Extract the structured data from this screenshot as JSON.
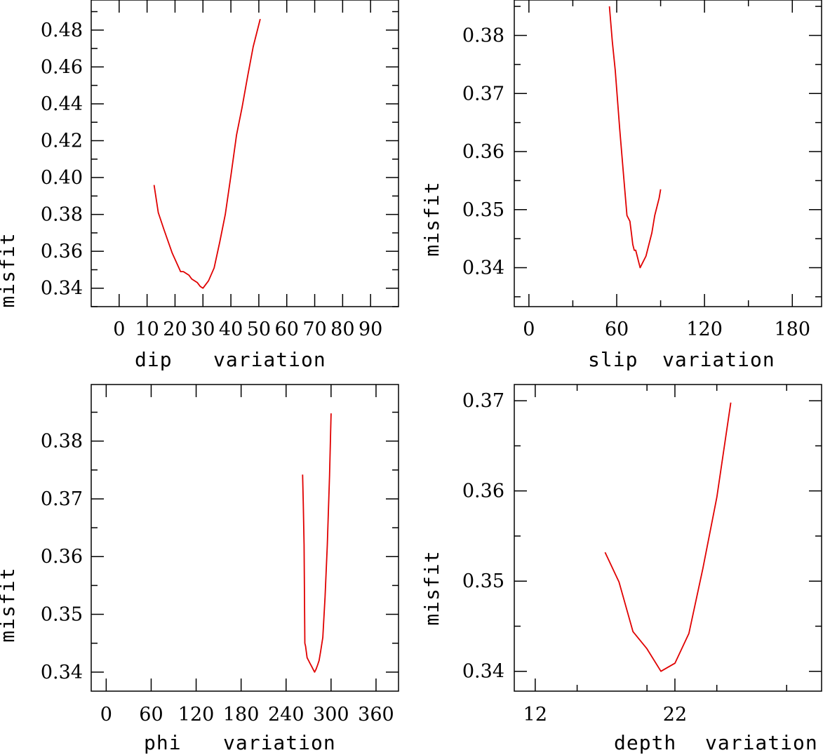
{
  "colors": {
    "curve": "#e00000",
    "axis": "#000000",
    "background": "#ffffff"
  },
  "chart_data": [
    {
      "type": "line",
      "ylabel": "misfit",
      "xlabel_left": "dip",
      "xlabel_right": "variation",
      "xlim": [
        -10,
        100
      ],
      "ylim": [
        0.33,
        0.4963
      ],
      "xticks": [
        0,
        10,
        20,
        30,
        40,
        50,
        60,
        70,
        80,
        90
      ],
      "yticks": [
        0.34,
        0.36,
        0.38,
        0.4,
        0.42,
        0.44,
        0.46,
        0.48
      ],
      "ytick_labels": [
        "0.34",
        "0.36",
        "0.38",
        "0.40",
        "0.42",
        "0.44",
        "0.46",
        "0.48"
      ],
      "yminor_step": 0.01,
      "x": [
        12.5,
        14,
        16,
        19,
        22,
        23,
        25,
        26,
        28,
        29,
        30,
        32,
        34,
        36,
        38,
        40,
        42,
        44,
        46,
        48,
        50.5
      ],
      "y": [
        0.396,
        0.381,
        0.372,
        0.359,
        0.349,
        0.349,
        0.347,
        0.345,
        0.343,
        0.341,
        0.34,
        0.344,
        0.351,
        0.365,
        0.38,
        0.401,
        0.423,
        0.438,
        0.455,
        0.471,
        0.486
      ]
    },
    {
      "type": "line",
      "ylabel": "misfit",
      "xlabel_left": "slip",
      "xlabel_right": "variation",
      "xlim": [
        -10,
        200
      ],
      "ylim": [
        0.3333,
        0.3861
      ],
      "xticks": [
        0,
        60,
        120,
        180
      ],
      "xminor_step": 30,
      "yticks": [
        0.34,
        0.35,
        0.36,
        0.37,
        0.38
      ],
      "ytick_labels": [
        "0.34",
        "0.35",
        "0.36",
        "0.37",
        "0.38"
      ],
      "yminor_step": 0.005,
      "x": [
        55,
        57,
        59,
        62,
        65,
        67,
        69,
        70,
        71,
        72,
        73,
        74,
        75,
        76,
        78,
        80,
        82,
        84,
        86,
        88,
        89,
        90
      ],
      "y": [
        0.385,
        0.379,
        0.374,
        0.364,
        0.355,
        0.349,
        0.348,
        0.346,
        0.344,
        0.343,
        0.343,
        0.342,
        0.341,
        0.34,
        0.341,
        0.342,
        0.344,
        0.346,
        0.349,
        0.351,
        0.352,
        0.3535
      ]
    },
    {
      "type": "line",
      "ylabel": "misfit",
      "xlabel_left": "phi",
      "xlabel_right": "variation",
      "xlim": [
        -20,
        390
      ],
      "ylim": [
        0.3367,
        0.3898
      ],
      "xticks": [
        0,
        60,
        120,
        180,
        240,
        300,
        360
      ],
      "yticks": [
        0.34,
        0.35,
        0.36,
        0.37,
        0.38
      ],
      "ytick_labels": [
        "0.34",
        "0.35",
        "0.36",
        "0.37",
        "0.38"
      ],
      "yminor_step": 0.005,
      "x": [
        262,
        263,
        264,
        265,
        266,
        267,
        268,
        270,
        272,
        274,
        276,
        278,
        280,
        282,
        284,
        286,
        289,
        292,
        295,
        298,
        300
      ],
      "y": [
        0.3742,
        0.369,
        0.362,
        0.345,
        0.3445,
        0.3435,
        0.3425,
        0.342,
        0.3415,
        0.341,
        0.3405,
        0.34,
        0.3405,
        0.3412,
        0.342,
        0.3435,
        0.346,
        0.353,
        0.362,
        0.374,
        0.3848
      ]
    },
    {
      "type": "line",
      "ylabel": "misfit",
      "xlabel_left": "depth",
      "xlabel_right": "variation",
      "xlim": [
        10.5,
        32.5
      ],
      "ylim": [
        0.3378,
        0.3718
      ],
      "xticks": [
        12,
        22
      ],
      "xtick_labels": [
        "12",
        "22"
      ],
      "xminor_step": 5,
      "yticks": [
        0.34,
        0.35,
        0.36,
        0.37
      ],
      "ytick_labels": [
        "0.34",
        "0.35",
        "0.36",
        "0.37"
      ],
      "yminor_step": 0.005,
      "x": [
        17,
        18,
        19,
        20,
        21,
        22,
        23,
        24,
        25,
        26
      ],
      "y": [
        0.3532,
        0.3499,
        0.3444,
        0.3425,
        0.34,
        0.3409,
        0.3442,
        0.3514,
        0.3593,
        0.3698
      ]
    }
  ]
}
